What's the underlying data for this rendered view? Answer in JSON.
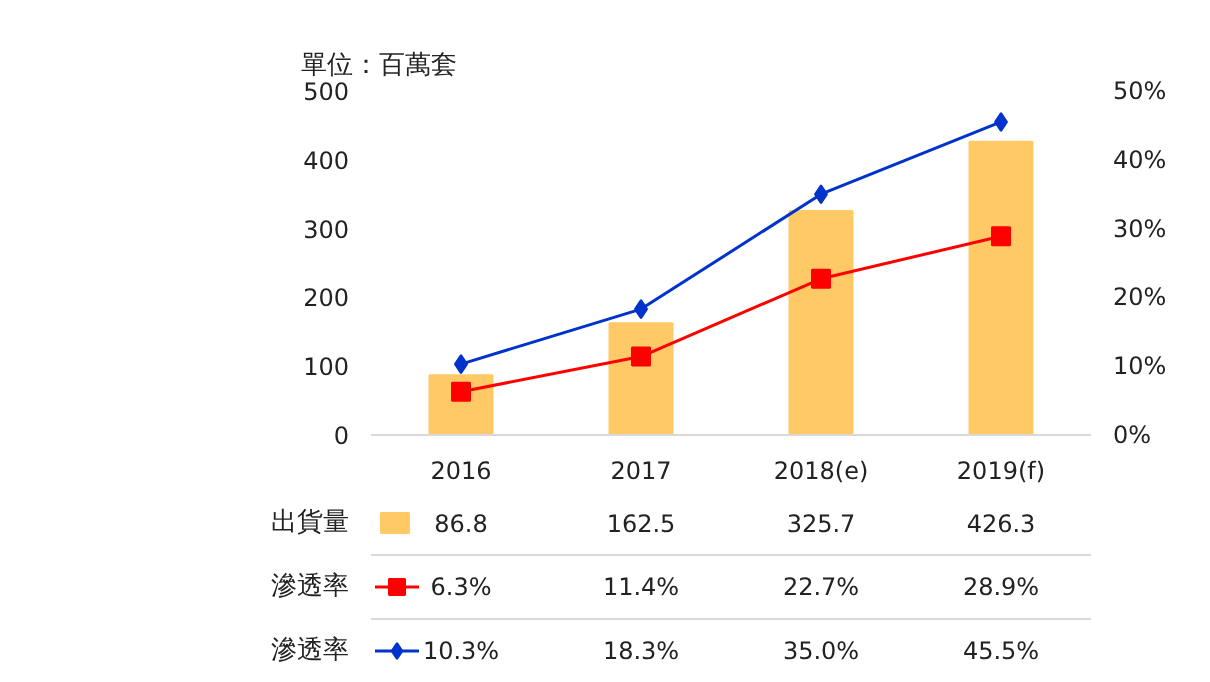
{
  "chart_data": {
    "type": "bar",
    "categories": [
      "2016",
      "2017",
      "2018(e)",
      "2019(f)"
    ],
    "annotations": [
      "單位：百萬套"
    ],
    "ylim": [
      0,
      500
    ],
    "yticks": [
      0,
      100,
      200,
      300,
      400,
      500
    ],
    "y2lim": [
      0,
      50
    ],
    "y2ticks": [
      {
        "value": 0,
        "label": "0%"
      },
      {
        "value": 10,
        "label": "10%"
      },
      {
        "value": 20,
        "label": "20%"
      },
      {
        "value": 30,
        "label": "30%"
      },
      {
        "value": 40,
        "label": "40%"
      },
      {
        "value": 50,
        "label": "50%"
      }
    ],
    "legend": "bottom left",
    "series": [
      {
        "name": "出貨量",
        "color": "#ffc966",
        "values": [
          86.8,
          162.5,
          325.7,
          426.3
        ],
        "value_labels": [
          "86.8",
          "162.5",
          "325.7",
          "426.3"
        ]
      },
      {
        "name": "滲透率",
        "type": "line",
        "axis": "y2",
        "marker": "square",
        "color": "#ff0000",
        "values": [
          6.3,
          11.4,
          22.7,
          28.9
        ],
        "value_labels": [
          "6.3%",
          "11.4%",
          "22.7%",
          "28.9%"
        ]
      },
      {
        "name": "滲透率",
        "type": "line",
        "axis": "y2",
        "marker": "diamond",
        "color": "#0033cc",
        "values": [
          10.3,
          18.3,
          35.0,
          45.5
        ],
        "value_labels": [
          "10.3%",
          "18.3%",
          "35.0%",
          "45.5%"
        ]
      }
    ]
  }
}
